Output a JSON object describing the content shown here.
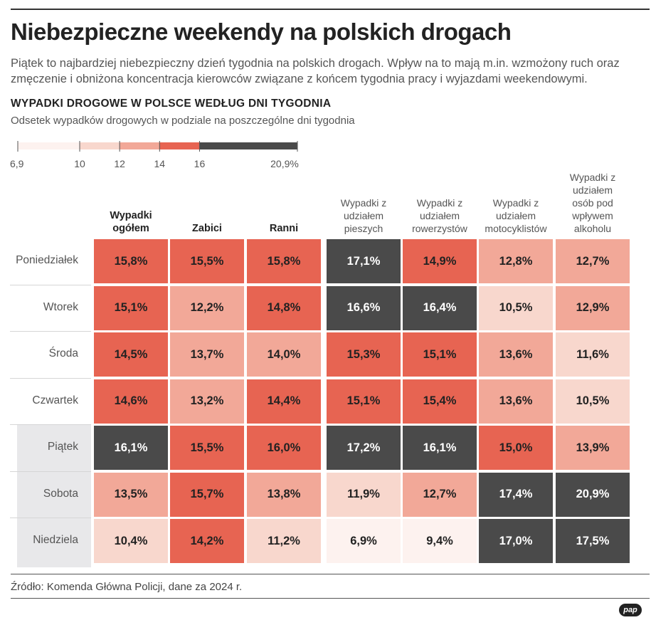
{
  "title": "Niebezpieczne weekendy na polskich drogach",
  "subtitle": "Piątek to najbardziej niebezpieczny dzień tygodnia na polskich drogach. Wpływ na to mają m.in. wzmożony ruch oraz zmęczenie i obniżona koncentracja kierowców związane z końcem tygodnia pracy i wyjazdami weekendowymi.",
  "section_title": "WYPADKI DROGOWE W POLSCE WEDŁUG DNI TYGODNIA",
  "section_subtitle": "Odsetek wypadków drogowych w podziale na poszczególne dni tygodnia",
  "source": "Źródło: Komenda Główna Policji, dane za 2024 r.",
  "logo": "pap",
  "legend": {
    "bins": [
      {
        "from": 6.9,
        "to": 10,
        "color": "#fdf2ef"
      },
      {
        "from": 10,
        "to": 12,
        "color": "#f8d7cd"
      },
      {
        "from": 12,
        "to": 14,
        "color": "#f2a898"
      },
      {
        "from": 14,
        "to": 16,
        "color": "#e76452"
      },
      {
        "from": 16,
        "to": 20.9,
        "color": "#4a4a4a"
      }
    ],
    "tick_labels": [
      "6,9",
      "10",
      "12",
      "14",
      "16",
      "20,9%"
    ]
  },
  "chart_data": {
    "type": "heatmap",
    "title": "WYPADKI DROGOWE W POLSCE WEDŁUG DNI TYGODNIA",
    "subtitle": "Odsetek wypadków drogowych w podziale na poszczególne dni tygodnia",
    "unit": "%",
    "rows": [
      "Poniedziałek",
      "Wtorek",
      "Środa",
      "Czwartek",
      "Piątek",
      "Sobota",
      "Niedziela"
    ],
    "highlighted_rows": [
      "Piątek",
      "Sobota",
      "Niedziela"
    ],
    "columns": [
      {
        "label": "Wypadki ogółem",
        "lines": [
          "Wypadki",
          "ogółem"
        ],
        "main": true
      },
      {
        "label": "Zabici",
        "lines": [
          "Zabici"
        ],
        "main": true
      },
      {
        "label": "Ranni",
        "lines": [
          "Ranni"
        ],
        "main": true
      },
      {
        "label": "Wypadki z udziałem pieszych",
        "lines": [
          "Wypadki z",
          "udziałem",
          "pieszych"
        ],
        "main": false
      },
      {
        "label": "Wypadki z udziałem rowerzystów",
        "lines": [
          "Wypadki z",
          "udziałem",
          "rowerzystów"
        ],
        "main": false
      },
      {
        "label": "Wypadki z udziałem motocyklistów",
        "lines": [
          "Wypadki z",
          "udziałem",
          "motocyklistów"
        ],
        "main": false
      },
      {
        "label": "Wypadki z udziałem osób pod wpływem alkoholu",
        "lines": [
          "Wypadki z",
          "udziałem",
          "osób pod",
          "wpływem",
          "alkoholu"
        ],
        "main": false
      }
    ],
    "values": [
      [
        15.8,
        15.5,
        15.8,
        17.1,
        14.9,
        12.8,
        12.7
      ],
      [
        15.1,
        12.2,
        14.8,
        16.6,
        16.4,
        10.5,
        12.9
      ],
      [
        14.5,
        13.7,
        14.0,
        15.3,
        15.1,
        13.6,
        11.6
      ],
      [
        14.6,
        13.2,
        14.4,
        15.1,
        15.4,
        13.6,
        10.5
      ],
      [
        16.1,
        15.5,
        16.0,
        17.2,
        16.1,
        15.0,
        13.9
      ],
      [
        13.5,
        15.7,
        13.8,
        11.9,
        12.7,
        17.4,
        20.9
      ],
      [
        10.4,
        14.2,
        11.2,
        6.9,
        9.4,
        17.0,
        17.5
      ]
    ],
    "value_labels": [
      [
        "15,8%",
        "15,5%",
        "15,8%",
        "17,1%",
        "14,9%",
        "12,8%",
        "12,7%"
      ],
      [
        "15,1%",
        "12,2%",
        "14,8%",
        "16,6%",
        "16,4%",
        "10,5%",
        "12,9%"
      ],
      [
        "14,5%",
        "13,7%",
        "14,0%",
        "15,3%",
        "15,1%",
        "13,6%",
        "11,6%"
      ],
      [
        "14,6%",
        "13,2%",
        "14,4%",
        "15,1%",
        "15,4%",
        "13,6%",
        "10,5%"
      ],
      [
        "16,1%",
        "15,5%",
        "16,0%",
        "17,2%",
        "16,1%",
        "15,0%",
        "13,9%"
      ],
      [
        "13,5%",
        "15,7%",
        "13,8%",
        "11,9%",
        "12,7%",
        "17,4%",
        "20,9%"
      ],
      [
        "10,4%",
        "14,2%",
        "11,2%",
        "6,9%",
        "9,4%",
        "17,0%",
        "17,5%"
      ]
    ]
  }
}
